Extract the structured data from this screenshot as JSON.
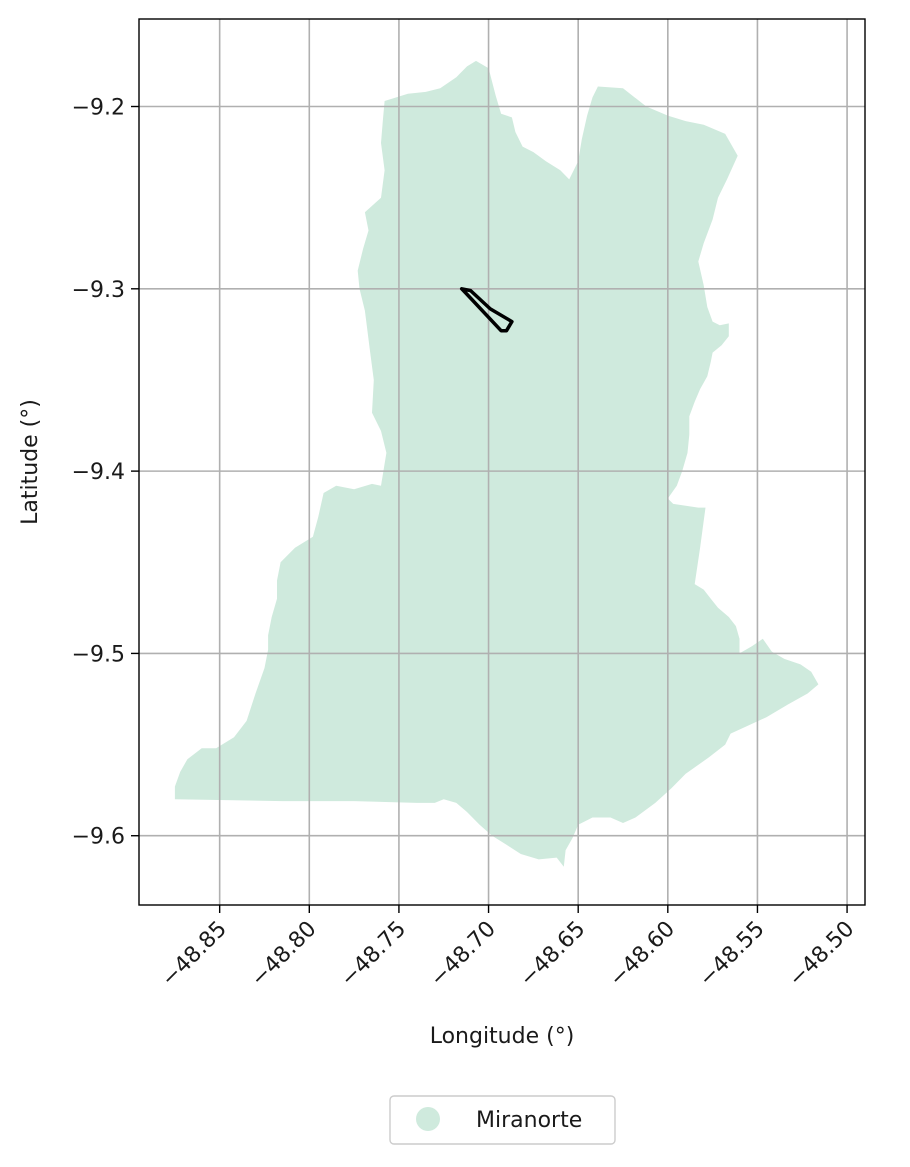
{
  "map": {
    "xlabel": "Longitude (°)",
    "ylabel": "Latitude (°)",
    "x_range": [
      -48.895,
      -48.49
    ],
    "y_range": [
      -9.638,
      -9.152
    ],
    "x_ticks": [
      -48.85,
      -48.8,
      -48.75,
      -48.7,
      -48.65,
      -48.6,
      -48.55,
      -48.5
    ],
    "x_tick_labels": [
      "−48.85",
      "−48.80",
      "−48.75",
      "−48.70",
      "−48.65",
      "−48.60",
      "−48.55",
      "−48.50"
    ],
    "y_ticks": [
      -9.2,
      -9.3,
      -9.4,
      -9.5,
      -9.6
    ],
    "y_tick_labels": [
      "−9.2",
      "−9.3",
      "−9.4",
      "−9.5",
      "−9.6"
    ],
    "grid": true,
    "region": {
      "name": "Miranorte",
      "fill_color": "#cfeadd",
      "boundary": [
        [
          -48.758,
          -9.197
        ],
        [
          -48.745,
          -9.193
        ],
        [
          -48.735,
          -9.192
        ],
        [
          -48.727,
          -9.19
        ],
        [
          -48.718,
          -9.184
        ],
        [
          -48.712,
          -9.178
        ],
        [
          -48.707,
          -9.175
        ],
        [
          -48.7,
          -9.179
        ],
        [
          -48.696,
          -9.194
        ],
        [
          -48.693,
          -9.204
        ],
        [
          -48.687,
          -9.206
        ],
        [
          -48.685,
          -9.214
        ],
        [
          -48.681,
          -9.222
        ],
        [
          -48.675,
          -9.225
        ],
        [
          -48.668,
          -9.23
        ],
        [
          -48.66,
          -9.235
        ],
        [
          -48.655,
          -9.24
        ],
        [
          -48.65,
          -9.23
        ],
        [
          -48.648,
          -9.218
        ],
        [
          -48.645,
          -9.205
        ],
        [
          -48.642,
          -9.195
        ],
        [
          -48.639,
          -9.189
        ],
        [
          -48.625,
          -9.19
        ],
        [
          -48.612,
          -9.2
        ],
        [
          -48.6,
          -9.205
        ],
        [
          -48.59,
          -9.208
        ],
        [
          -48.58,
          -9.21
        ],
        [
          -48.568,
          -9.215
        ],
        [
          -48.561,
          -9.227
        ],
        [
          -48.567,
          -9.24
        ],
        [
          -48.572,
          -9.25
        ],
        [
          -48.575,
          -9.262
        ],
        [
          -48.58,
          -9.275
        ],
        [
          -48.583,
          -9.285
        ],
        [
          -48.58,
          -9.298
        ],
        [
          -48.578,
          -9.31
        ],
        [
          -48.575,
          -9.318
        ],
        [
          -48.571,
          -9.32
        ],
        [
          -48.566,
          -9.319
        ],
        [
          -48.566,
          -9.326
        ],
        [
          -48.57,
          -9.331
        ],
        [
          -48.575,
          -9.335
        ],
        [
          -48.576,
          -9.34
        ],
        [
          -48.578,
          -9.348
        ],
        [
          -48.582,
          -9.355
        ],
        [
          -48.585,
          -9.362
        ],
        [
          -48.588,
          -9.37
        ],
        [
          -48.588,
          -9.38
        ],
        [
          -48.589,
          -9.39
        ],
        [
          -48.592,
          -9.4
        ],
        [
          -48.595,
          -9.408
        ],
        [
          -48.6,
          -9.415
        ],
        [
          -48.597,
          -9.418
        ],
        [
          -48.583,
          -9.42
        ],
        [
          -48.579,
          -9.42
        ],
        [
          -48.582,
          -9.442
        ],
        [
          -48.585,
          -9.462
        ],
        [
          -48.58,
          -9.465
        ],
        [
          -48.576,
          -9.47
        ],
        [
          -48.572,
          -9.475
        ],
        [
          -48.566,
          -9.48
        ],
        [
          -48.562,
          -9.485
        ],
        [
          -48.56,
          -9.492
        ],
        [
          -48.56,
          -9.5
        ],
        [
          -48.553,
          -9.496
        ],
        [
          -48.547,
          -9.492
        ],
        [
          -48.542,
          -9.499
        ],
        [
          -48.535,
          -9.503
        ],
        [
          -48.526,
          -9.506
        ],
        [
          -48.52,
          -9.51
        ],
        [
          -48.516,
          -9.517
        ],
        [
          -48.522,
          -9.522
        ],
        [
          -48.533,
          -9.528
        ],
        [
          -48.545,
          -9.535
        ],
        [
          -48.556,
          -9.54
        ],
        [
          -48.565,
          -9.544
        ],
        [
          -48.568,
          -9.55
        ],
        [
          -48.577,
          -9.557
        ],
        [
          -48.59,
          -9.566
        ],
        [
          -48.598,
          -9.574
        ],
        [
          -48.607,
          -9.582
        ],
        [
          -48.618,
          -9.59
        ],
        [
          -48.625,
          -9.593
        ],
        [
          -48.632,
          -9.59
        ],
        [
          -48.642,
          -9.59
        ],
        [
          -48.65,
          -9.594
        ],
        [
          -48.653,
          -9.601
        ],
        [
          -48.657,
          -9.608
        ],
        [
          -48.658,
          -9.617
        ],
        [
          -48.662,
          -9.612
        ],
        [
          -48.672,
          -9.613
        ],
        [
          -48.682,
          -9.61
        ],
        [
          -48.69,
          -9.605
        ],
        [
          -48.698,
          -9.6
        ],
        [
          -48.705,
          -9.594
        ],
        [
          -48.712,
          -9.587
        ],
        [
          -48.718,
          -9.582
        ],
        [
          -48.725,
          -9.58
        ],
        [
          -48.73,
          -9.582
        ],
        [
          -48.74,
          -9.582
        ],
        [
          -48.775,
          -9.581
        ],
        [
          -48.815,
          -9.581
        ],
        [
          -48.875,
          -9.58
        ],
        [
          -48.875,
          -9.573
        ],
        [
          -48.872,
          -9.565
        ],
        [
          -48.868,
          -9.558
        ],
        [
          -48.86,
          -9.552
        ],
        [
          -48.852,
          -9.552
        ],
        [
          -48.842,
          -9.546
        ],
        [
          -48.835,
          -9.537
        ],
        [
          -48.83,
          -9.522
        ],
        [
          -48.825,
          -9.508
        ],
        [
          -48.823,
          -9.498
        ],
        [
          -48.823,
          -9.49
        ],
        [
          -48.821,
          -9.48
        ],
        [
          -48.818,
          -9.47
        ],
        [
          -48.818,
          -9.46
        ],
        [
          -48.816,
          -9.45
        ],
        [
          -48.808,
          -9.442
        ],
        [
          -48.798,
          -9.436
        ],
        [
          -48.795,
          -9.425
        ],
        [
          -48.792,
          -9.412
        ],
        [
          -48.785,
          -9.408
        ],
        [
          -48.775,
          -9.41
        ],
        [
          -48.765,
          -9.407
        ],
        [
          -48.76,
          -9.408
        ],
        [
          -48.757,
          -9.39
        ],
        [
          -48.76,
          -9.378
        ],
        [
          -48.765,
          -9.368
        ],
        [
          -48.764,
          -9.35
        ],
        [
          -48.766,
          -9.335
        ],
        [
          -48.769,
          -9.312
        ],
        [
          -48.772,
          -9.3
        ],
        [
          -48.773,
          -9.29
        ],
        [
          -48.77,
          -9.278
        ],
        [
          -48.767,
          -9.268
        ],
        [
          -48.769,
          -9.258
        ],
        [
          -48.76,
          -9.25
        ],
        [
          -48.758,
          -9.235
        ],
        [
          -48.76,
          -9.22
        ],
        [
          -48.759,
          -9.208
        ],
        [
          -48.758,
          -9.197
        ]
      ]
    },
    "highlight": {
      "stroke_color": "#000000",
      "boundary": [
        [
          -48.715,
          -9.3
        ],
        [
          -48.71,
          -9.301
        ],
        [
          -48.699,
          -9.311
        ],
        [
          -48.687,
          -9.318
        ],
        [
          -48.69,
          -9.323
        ],
        [
          -48.693,
          -9.323
        ],
        [
          -48.713,
          -9.302
        ],
        [
          -48.715,
          -9.3
        ]
      ]
    },
    "legend": {
      "position": "bottom-center",
      "label": "Miranorte"
    }
  }
}
